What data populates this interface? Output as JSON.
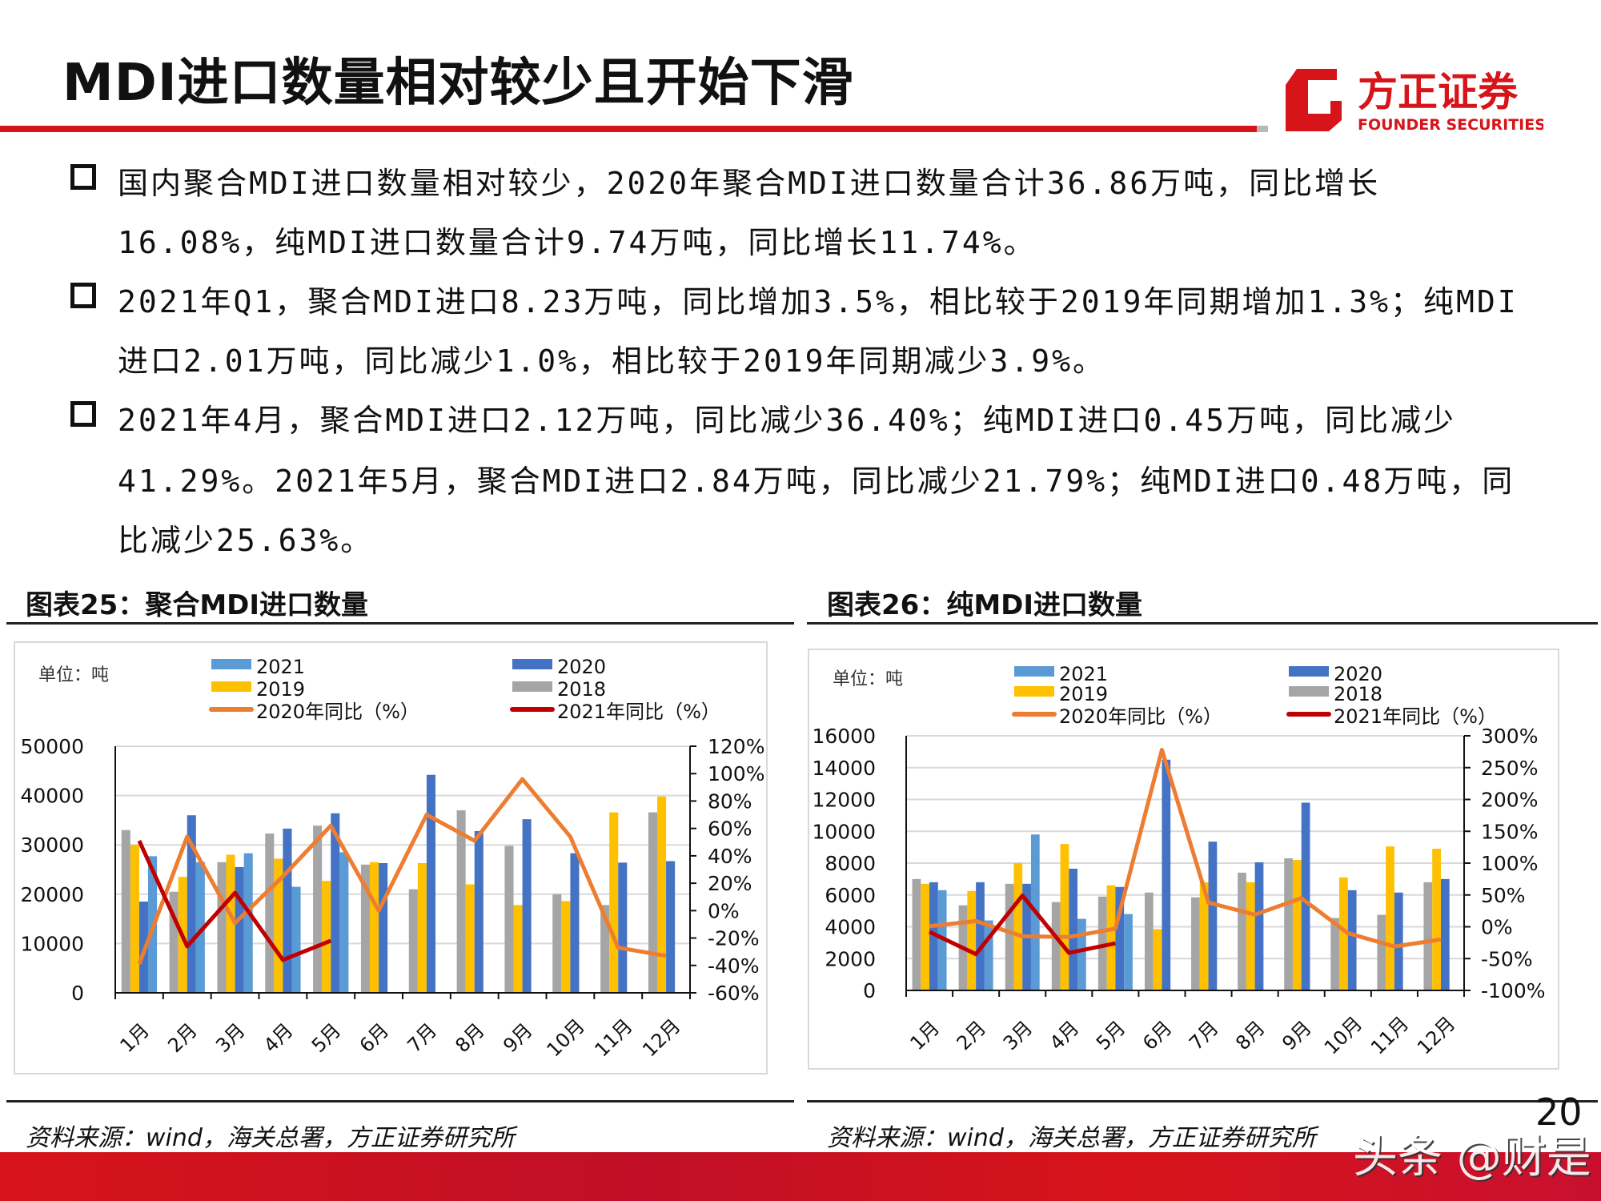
{
  "header": {
    "title": "MDI进口数量相对较少且开始下滑",
    "logo_text_cn": "方正证券",
    "logo_text_en": "FOUNDER SECURITIES",
    "brand_color": "#d7141a"
  },
  "bullets": [
    {
      "lines": [
        "国内聚合MDI进口数量相对较少，2020年聚合MDI进口数量合计36.86万吨，同比增长",
        "16.08%，纯MDI进口数量合计9.74万吨，同比增长11.74%。"
      ]
    },
    {
      "lines": [
        "2021年Q1，聚合MDI进口8.23万吨，同比增加3.5%，相比较于2019年同期增加1.3%；纯MDI",
        "进口2.01万吨，同比减少1.0%，相比较于2019年同期减少3.9%。"
      ]
    },
    {
      "lines": [
        "2021年4月，聚合MDI进口2.12万吨，同比减少36.40%；纯MDI进口0.45万吨，同比减少",
        "41.29%。2021年5月，聚合MDI进口2.84万吨，同比减少21.79%；纯MDI进口0.48万吨，同",
        "比减少25.63%。"
      ]
    }
  ],
  "figures": [
    {
      "caption": "图表25：聚合MDI进口数量",
      "source": "资料来源：wind，海关总署，方正证券研究所"
    },
    {
      "caption": "图表26：纯MDI进口数量",
      "source": "资料来源：wind，海关总署，方正证券研究所"
    }
  ],
  "page_number": "20",
  "watermark": "头条 @财是",
  "colors": {
    "2018": "#a5a5a5",
    "2019": "#ffc000",
    "2020": "#4472c4",
    "2021": "#5b9bd5",
    "yoy2020": "#ed7d31",
    "yoy2021": "#c00000"
  },
  "chart_data": [
    {
      "type": "bar",
      "unit_label": "单位：吨",
      "categories": [
        "1月",
        "2月",
        "3月",
        "4月",
        "5月",
        "6月",
        "7月",
        "8月",
        "9月",
        "10月",
        "11月",
        "12月"
      ],
      "ylim": [
        0,
        50000
      ],
      "yticks": [
        0,
        10000,
        20000,
        30000,
        40000,
        50000
      ],
      "y2lim": [
        -60,
        120
      ],
      "y2ticks": [
        "-60%",
        "-40%",
        "-20%",
        "0%",
        "20%",
        "40%",
        "60%",
        "80%",
        "100%",
        "120%"
      ],
      "grid": true,
      "series": [
        {
          "name": "2018",
          "kind": "bar",
          "values": [
            33000,
            20500,
            26500,
            32300,
            33900,
            26000,
            21000,
            37000,
            29800,
            20000,
            17800,
            36600
          ]
        },
        {
          "name": "2019",
          "kind": "bar",
          "values": [
            30000,
            23500,
            28000,
            27200,
            22700,
            26500,
            26300,
            22000,
            17800,
            18600,
            36600,
            39800
          ]
        },
        {
          "name": "2020",
          "kind": "bar",
          "values": [
            18500,
            36000,
            25500,
            33300,
            36400,
            26300,
            44200,
            32800,
            35200,
            28300,
            26400,
            26700
          ]
        },
        {
          "name": "2021",
          "kind": "bar",
          "values": [
            27700,
            26500,
            28300,
            21500,
            28500,
            null,
            null,
            null,
            null,
            null,
            null,
            null
          ]
        },
        {
          "name": "2020年同比（%）",
          "kind": "line",
          "axis": "right",
          "values": [
            -39,
            54,
            -9,
            25,
            62,
            0,
            70,
            51,
            96,
            54,
            -27,
            -33
          ]
        },
        {
          "name": "2021年同比（%）",
          "kind": "line",
          "axis": "right",
          "values": [
            51,
            -26,
            13,
            -36,
            -22,
            null,
            null,
            null,
            null,
            null,
            null,
            null
          ]
        }
      ]
    },
    {
      "type": "bar",
      "unit_label": "单位：吨",
      "categories": [
        "1月",
        "2月",
        "3月",
        "4月",
        "5月",
        "6月",
        "7月",
        "8月",
        "9月",
        "10月",
        "11月",
        "12月"
      ],
      "ylim": [
        0,
        16000
      ],
      "yticks": [
        0,
        2000,
        4000,
        6000,
        8000,
        10000,
        12000,
        14000,
        16000
      ],
      "y2lim": [
        -100,
        300
      ],
      "y2ticks": [
        "-100%",
        "-50%",
        "0%",
        "50%",
        "100%",
        "150%",
        "200%",
        "250%",
        "300%"
      ],
      "grid": true,
      "series": [
        {
          "name": "2018",
          "kind": "bar",
          "values": [
            7000,
            5350,
            6700,
            5550,
            5900,
            6150,
            5850,
            7400,
            8300,
            4550,
            4750,
            6800
          ]
        },
        {
          "name": "2019",
          "kind": "bar",
          "values": [
            6700,
            6250,
            8000,
            9200,
            6600,
            3850,
            6800,
            6800,
            8200,
            7100,
            9050,
            8900
          ]
        },
        {
          "name": "2020",
          "kind": "bar",
          "values": [
            6800,
            6800,
            6700,
            7650,
            6500,
            14500,
            9350,
            8050,
            11800,
            6300,
            6150,
            7000
          ]
        },
        {
          "name": "2021",
          "kind": "bar",
          "values": [
            6300,
            4400,
            9800,
            4500,
            4800,
            null,
            null,
            null,
            null,
            null,
            null,
            null
          ]
        },
        {
          "name": "2020年同比（%）",
          "kind": "line",
          "axis": "right",
          "values": [
            1,
            9,
            -15,
            -16,
            -3,
            278,
            38,
            19,
            45,
            -10,
            -31,
            -20
          ]
        },
        {
          "name": "2021年同比（%）",
          "kind": "line",
          "axis": "right",
          "values": [
            -8,
            -43,
            49,
            -41,
            -26,
            null,
            null,
            null,
            null,
            null,
            null,
            null
          ]
        }
      ]
    }
  ]
}
